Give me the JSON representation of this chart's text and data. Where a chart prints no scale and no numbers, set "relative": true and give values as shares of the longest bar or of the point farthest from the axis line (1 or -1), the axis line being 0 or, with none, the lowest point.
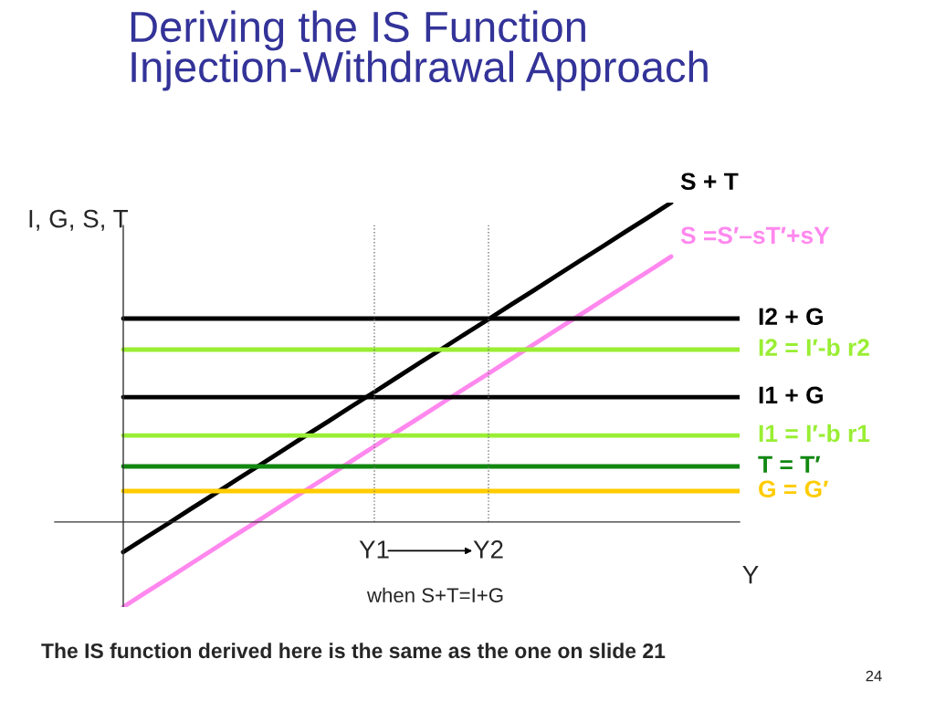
{
  "chart_data": {
    "type": "line",
    "title": "Deriving the IS Function\nInjection-Withdrawal Approach",
    "xlabel": "Y",
    "ylabel": "I, G, S, T",
    "relative": true,
    "categories": [
      null,
      null,
      null,
      null,
      null,
      null,
      null,
      null,
      null,
      null,
      null,
      "Y1",
      null,
      null,
      null,
      null,
      "Y2",
      null,
      null,
      null,
      null,
      null,
      null,
      null,
      null,
      null,
      null,
      null
    ],
    "series": [
      {
        "name": "S + T",
        "color": "#000000",
        "values": [
          -0.094,
          -0.048,
          -0.003,
          0.043,
          0.088,
          0.134,
          0.179,
          0.225,
          0.271,
          0.316,
          0.362,
          0.407,
          0.453,
          0.499,
          0.544,
          0.59,
          0.635,
          0.681,
          0.726,
          0.772,
          0.818,
          0.863,
          0.909,
          0.954,
          1.0,
          null,
          null,
          null
        ]
      },
      {
        "name": "S =S′–sT′+sY",
        "color": "#ff88ee",
        "values": [
          -0.266,
          -0.22,
          -0.175,
          -0.129,
          -0.083,
          -0.037,
          0.008,
          0.054,
          0.1,
          0.145,
          0.191,
          0.237,
          0.283,
          0.328,
          0.374,
          0.42,
          0.465,
          0.511,
          0.557,
          0.603,
          0.648,
          0.694,
          0.74,
          0.785,
          0.831,
          null,
          null,
          null
        ]
      },
      {
        "name": "I2 + G",
        "color": "#000000",
        "values": [
          0.637,
          0.637,
          0.637,
          0.637,
          0.637,
          0.637,
          0.637,
          0.637,
          0.637,
          0.637,
          0.637,
          0.637,
          0.637,
          0.637,
          0.637,
          0.637,
          0.637,
          0.637,
          0.637,
          0.637,
          0.637,
          0.637,
          0.637,
          0.637,
          0.637,
          0.637,
          0.637,
          0.637
        ]
      },
      {
        "name": "I2 = I′-b r2",
        "color": "#99ee33",
        "values": [
          0.54,
          0.54,
          0.54,
          0.54,
          0.54,
          0.54,
          0.54,
          0.54,
          0.54,
          0.54,
          0.54,
          0.54,
          0.54,
          0.54,
          0.54,
          0.54,
          0.54,
          0.54,
          0.54,
          0.54,
          0.54,
          0.54,
          0.54,
          0.54,
          0.54,
          0.54,
          0.54,
          0.54
        ]
      },
      {
        "name": "I1 + G",
        "color": "#000000",
        "values": [
          0.391,
          0.391,
          0.391,
          0.391,
          0.391,
          0.391,
          0.391,
          0.391,
          0.391,
          0.391,
          0.391,
          0.391,
          0.391,
          0.391,
          0.391,
          0.391,
          0.391,
          0.391,
          0.391,
          0.391,
          0.391,
          0.391,
          0.391,
          0.391,
          0.391,
          0.391,
          0.391,
          0.391
        ]
      },
      {
        "name": "I1 = I′-b r1",
        "color": "#99ee33",
        "values": [
          0.271,
          0.271,
          0.271,
          0.271,
          0.271,
          0.271,
          0.271,
          0.271,
          0.271,
          0.271,
          0.271,
          0.271,
          0.271,
          0.271,
          0.271,
          0.271,
          0.271,
          0.271,
          0.271,
          0.271,
          0.271,
          0.271,
          0.271,
          0.271,
          0.271,
          0.271,
          0.271,
          0.271
        ]
      },
      {
        "name": "T = T′",
        "color": "#118811",
        "values": [
          0.174,
          0.174,
          0.174,
          0.174,
          0.174,
          0.174,
          0.174,
          0.174,
          0.174,
          0.174,
          0.174,
          0.174,
          0.174,
          0.174,
          0.174,
          0.174,
          0.174,
          0.174,
          0.174,
          0.174,
          0.174,
          0.174,
          0.174,
          0.174,
          0.174,
          0.174,
          0.174,
          0.174
        ]
      },
      {
        "name": "G = G′",
        "color": "#ffcc00",
        "values": [
          0.097,
          0.097,
          0.097,
          0.097,
          0.097,
          0.097,
          0.097,
          0.097,
          0.097,
          0.097,
          0.097,
          0.097,
          0.097,
          0.097,
          0.097,
          0.097,
          0.097,
          0.097,
          0.097,
          0.097,
          0.097,
          0.097,
          0.097,
          0.097,
          0.097,
          0.097,
          0.097,
          0.097
        ]
      }
    ],
    "ref_lines": [
      {
        "axis": "x",
        "value": "Y1",
        "color": "#777777",
        "line_style": "dotted"
      },
      {
        "axis": "x",
        "value": "Y2",
        "color": "#777777",
        "line_style": "dotted"
      }
    ],
    "annotations": [
      "when S+T=I+G",
      "The IS function derived here is the same as the one on slide 21",
      "24"
    ],
    "grid": false,
    "legend": false,
    "marker": "none",
    "line_style": "solid"
  }
}
